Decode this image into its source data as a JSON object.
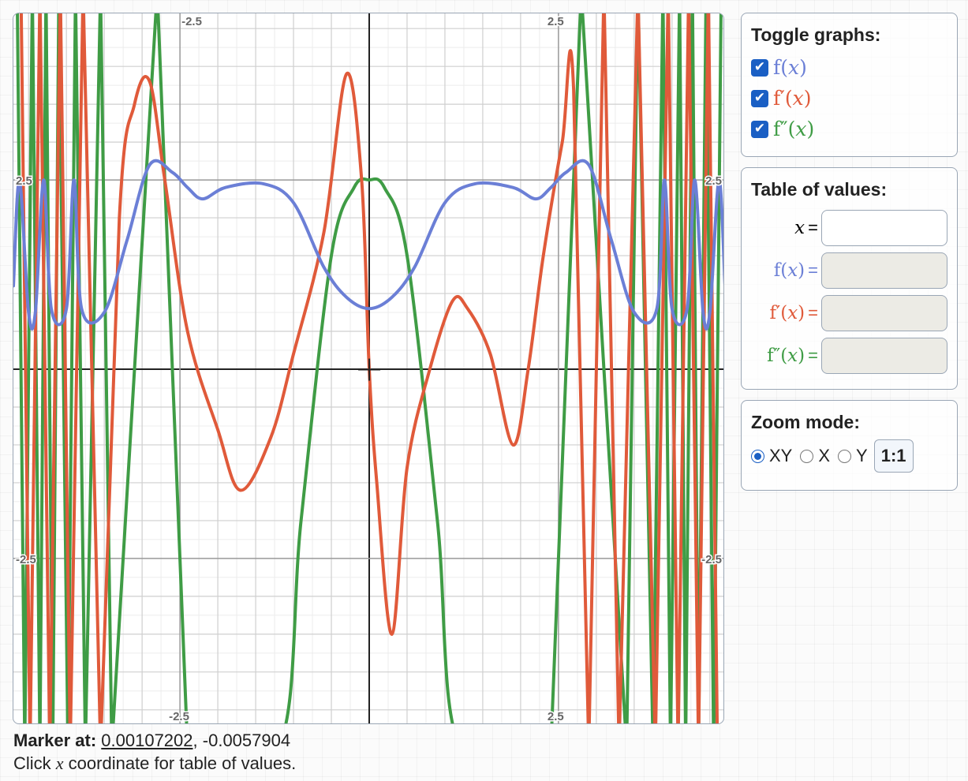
{
  "chart_data": {
    "type": "line",
    "xlim": [
      -4.7,
      4.7
    ],
    "ylim": [
      -4.7,
      4.7
    ],
    "grid": true,
    "tick_labels": {
      "x": [
        "-2.5",
        "2.5"
      ],
      "y": [
        "2.5",
        "-2.5"
      ]
    },
    "series": [
      {
        "name": "f(x)",
        "color": "#6b7fd6",
        "points": [
          [
            -4.7,
            1.1
          ],
          [
            -4.62,
            2.5
          ],
          [
            -4.5,
            0.75
          ],
          [
            -4.41,
            0.75
          ],
          [
            -4.3,
            2.5
          ],
          [
            -4.2,
            0.8
          ],
          [
            -4.0,
            0.8
          ],
          [
            -3.9,
            2.5
          ],
          [
            -3.8,
            0.8
          ],
          [
            -3.5,
            0.75
          ],
          [
            -3.2,
            1.7
          ],
          [
            -2.9,
            2.7
          ],
          [
            -2.6,
            2.6
          ],
          [
            -2.4,
            2.4
          ],
          [
            -2.2,
            2.25
          ],
          [
            -1.9,
            2.4
          ],
          [
            -1.4,
            2.45
          ],
          [
            -1.0,
            2.2
          ],
          [
            -0.6,
            1.35
          ],
          [
            -0.3,
            0.95
          ],
          [
            0.0,
            0.8
          ],
          [
            0.3,
            0.95
          ],
          [
            0.6,
            1.35
          ],
          [
            1.0,
            2.2
          ],
          [
            1.4,
            2.45
          ],
          [
            1.9,
            2.4
          ],
          [
            2.2,
            2.25
          ],
          [
            2.4,
            2.4
          ],
          [
            2.6,
            2.6
          ],
          [
            2.9,
            2.7
          ],
          [
            3.2,
            1.7
          ],
          [
            3.5,
            0.75
          ],
          [
            3.8,
            0.8
          ],
          [
            3.9,
            2.5
          ],
          [
            4.0,
            0.8
          ],
          [
            4.2,
            0.8
          ],
          [
            4.3,
            2.5
          ],
          [
            4.41,
            0.75
          ],
          [
            4.5,
            0.75
          ],
          [
            4.62,
            2.5
          ],
          [
            4.7,
            1.1
          ]
        ]
      },
      {
        "name": "f′(x)",
        "color": "#e05a3a",
        "points": [
          [
            -4.6,
            5.0
          ],
          [
            -4.48,
            -5.0
          ],
          [
            -4.35,
            5.0
          ],
          [
            -4.22,
            -5.0
          ],
          [
            -4.08,
            5.0
          ],
          [
            -3.95,
            -5.0
          ],
          [
            -3.78,
            5.0
          ],
          [
            -3.55,
            -5.0
          ],
          [
            -3.3,
            2.0
          ],
          [
            -3.1,
            3.5
          ],
          [
            -2.9,
            3.8
          ],
          [
            -2.7,
            2.5
          ],
          [
            -2.4,
            0.5
          ],
          [
            -2.0,
            -0.8
          ],
          [
            -1.7,
            -1.6
          ],
          [
            -1.3,
            -0.9
          ],
          [
            -1.0,
            0.2
          ],
          [
            -0.6,
            1.8
          ],
          [
            -0.3,
            3.9
          ],
          [
            -0.1,
            2.5
          ],
          [
            0.0,
            0.0
          ],
          [
            0.1,
            -1.5
          ],
          [
            0.3,
            -3.5
          ],
          [
            0.5,
            -1.3
          ],
          [
            0.8,
            0.0
          ],
          [
            1.1,
            0.9
          ],
          [
            1.3,
            0.8
          ],
          [
            1.6,
            0.2
          ],
          [
            1.9,
            -1.0
          ],
          [
            2.1,
            0.0
          ],
          [
            2.3,
            1.5
          ],
          [
            2.55,
            3.0
          ],
          [
            2.7,
            3.7
          ],
          [
            2.9,
            -5.0
          ],
          [
            3.1,
            5.0
          ],
          [
            3.3,
            -5.0
          ],
          [
            3.55,
            5.0
          ],
          [
            3.78,
            -5.0
          ],
          [
            3.95,
            5.0
          ],
          [
            4.08,
            -5.0
          ],
          [
            4.22,
            5.0
          ],
          [
            4.35,
            -5.0
          ],
          [
            4.48,
            5.0
          ],
          [
            4.6,
            -5.0
          ]
        ]
      },
      {
        "name": "f″(x)",
        "color": "#3f9c45",
        "points": [
          [
            -4.65,
            5.0
          ],
          [
            -4.55,
            -5.0
          ],
          [
            -4.45,
            5.0
          ],
          [
            -4.35,
            -5.0
          ],
          [
            -4.27,
            5.0
          ],
          [
            -4.18,
            -5.0
          ],
          [
            -4.1,
            5.0
          ],
          [
            -3.98,
            -5.0
          ],
          [
            -3.88,
            5.0
          ],
          [
            -3.75,
            -5.0
          ],
          [
            -3.55,
            5.0
          ],
          [
            -3.4,
            -5.0
          ],
          [
            -2.8,
            5.0
          ],
          [
            -2.4,
            -5.0
          ],
          [
            -1.2,
            -5.0
          ],
          [
            -0.9,
            -2.0
          ],
          [
            -0.5,
            1.5
          ],
          [
            -0.2,
            2.4
          ],
          [
            0.0,
            2.5
          ],
          [
            0.2,
            2.4
          ],
          [
            0.5,
            1.5
          ],
          [
            0.9,
            -2.0
          ],
          [
            1.2,
            -5.0
          ],
          [
            2.4,
            -5.0
          ],
          [
            2.8,
            5.0
          ],
          [
            3.4,
            -5.0
          ],
          [
            3.55,
            5.0
          ],
          [
            3.75,
            -5.0
          ],
          [
            3.88,
            5.0
          ],
          [
            3.98,
            -5.0
          ],
          [
            4.1,
            5.0
          ],
          [
            4.18,
            -5.0
          ],
          [
            4.27,
            5.0
          ],
          [
            4.35,
            -5.0
          ],
          [
            4.45,
            5.0
          ],
          [
            4.55,
            -5.0
          ],
          [
            4.65,
            5.0
          ]
        ]
      }
    ]
  },
  "toggle": {
    "title": "Toggle graphs:",
    "items": [
      {
        "label": "f(𝑥)",
        "checked": true
      },
      {
        "label": "f′(𝑥)",
        "checked": true
      },
      {
        "label": "f″(𝑥)",
        "checked": true
      }
    ]
  },
  "table": {
    "title": "Table of values:",
    "x_label": "𝑥",
    "f_label": "f(𝑥)",
    "fp_label": "f′(𝑥)",
    "fpp_label": "f″(𝑥)",
    "eq": "=",
    "x_value": "",
    "f_value": "",
    "fp_value": "",
    "fpp_value": ""
  },
  "zoom": {
    "title": "Zoom mode:",
    "options": [
      "XY",
      "X",
      "Y"
    ],
    "selected": "XY",
    "reset_label": "1:1"
  },
  "marker": {
    "label": "Marker at:",
    "x": "0.00107202",
    "separator": ",",
    "y": "-0.0057904"
  },
  "hint": {
    "before": "Click ",
    "var": "x",
    "after": " coordinate for table of values."
  }
}
